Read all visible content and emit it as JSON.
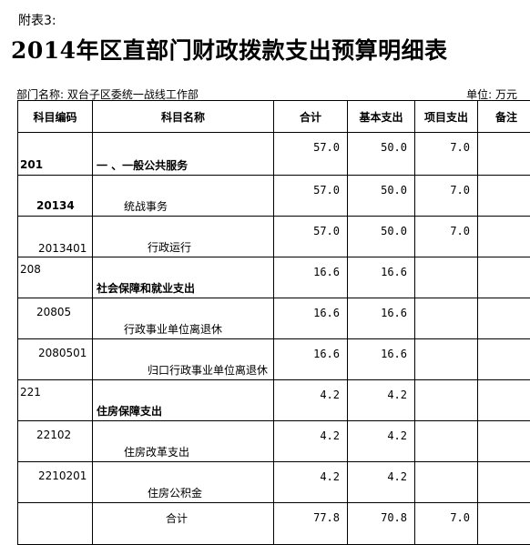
{
  "attachment_label": "附表3:",
  "title": "2014年区直部门财政拨款支出预算明细表",
  "department": "部门名称: 双台子区委统一战线工作部",
  "unit": "单位: 万元",
  "headers": [
    "科目编码",
    "科目名称",
    "合计",
    "基本支出",
    "项目支出",
    "备注"
  ],
  "rows": [
    {
      "code": "201",
      "name": "一 、一般公共服务",
      "total": "57.0",
      "basic": "50.0",
      "project": "7.0",
      "note": "",
      "level": 1
    },
    {
      "code": "20134",
      "name": "统战事务",
      "total": "57.0",
      "basic": "50.0",
      "project": "7.0",
      "note": "",
      "level": 2
    },
    {
      "code": "2013401",
      "name": "行政运行",
      "total": "57.0",
      "basic": "50.0",
      "project": "7.0",
      "note": "",
      "level": 3
    },
    {
      "code": "208",
      "name": "社会保障和就业支出",
      "total": "16.6",
      "basic": "16.6",
      "project": "",
      "note": "",
      "level": 1
    },
    {
      "code": "20805",
      "name": "行政事业单位离退休",
      "total": "16.6",
      "basic": "16.6",
      "project": "",
      "note": "",
      "level": 2
    },
    {
      "code": "2080501",
      "name": "归口行政事业单位离退休",
      "total": "16.6",
      "basic": "16.6",
      "project": "",
      "note": "",
      "level": 3
    },
    {
      "code": "221",
      "name": "住房保障支出",
      "total": "4.2",
      "basic": "4.2",
      "project": "",
      "note": "",
      "level": 1
    },
    {
      "code": "22102",
      "name": "住房改革支出",
      "total": "4.2",
      "basic": "4.2",
      "project": "",
      "note": "",
      "level": 2
    },
    {
      "code": "2210201",
      "name": "住房公积金",
      "total": "4.2",
      "basic": "4.2",
      "project": "",
      "note": "",
      "level": 3
    }
  ],
  "total_row": {
    "label": "合计",
    "total": "77.8",
    "basic": "70.8",
    "project": "7.0",
    "note": ""
  }
}
